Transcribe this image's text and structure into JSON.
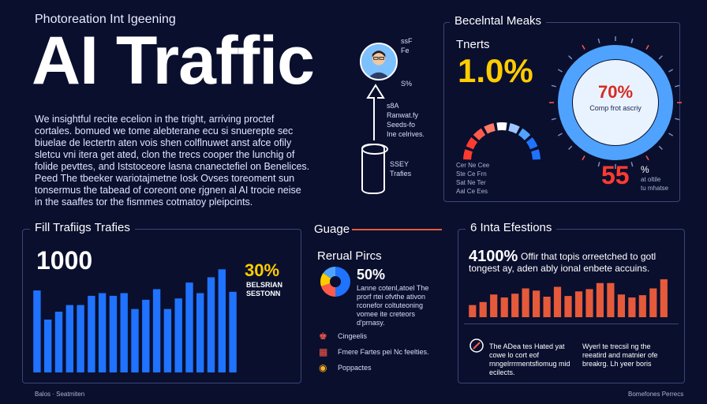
{
  "header": {
    "kicker": "Photoreation Int Igeening",
    "title": "AI Traffic",
    "intro": "We insightful recite ecelion in the tright, arriving proctef cortales. bomued we tome alebterane ecu si snuerepte sec biuelae de lectertn aten vois shen colflnuwet anst afce ofily sletcu vni itera get ated, clon the trecs cooper the lunchig of folide pevttes, and Iststoceore lasna cnanectefiel on Benelices. Peed The tbeeker wariotajmetne Iosk Ovses toreoment sun tonsermus the tabead of coreont one rjgnen al AI trocie neise in the saaffes tor the fismmes cotmatoy pleipcints."
  },
  "profile_notes": {
    "top_a": "ssF",
    "top_b": "Fe",
    "side": "S%",
    "mid_lines": [
      "s8A",
      "Ranwat.fy",
      "Seeds-fo",
      "Ine celrives."
    ],
    "lower_lines": [
      "SSEY",
      "Trafies"
    ]
  },
  "top_right": {
    "panel_title": "Becelntal Meaks",
    "label": "Tnerts",
    "big_value": "1.0%",
    "donut_value": "70%",
    "donut_caption": "Comp frot ascriy",
    "kpi_value": "55",
    "kpi_suffix": "%",
    "kpi_notes": [
      "at oltile",
      "tu mhatse"
    ],
    "legend_rows": [
      "Cer  Ne  Cee",
      "Ste  Ce  Frn",
      "Sat  Ne  Ter",
      "Aal  Ce  Ees"
    ]
  },
  "bar_panel": {
    "title": "Fill Trafiigs Trafies",
    "value": "1000",
    "side_value": "30%",
    "side_sub_a": "BELSRIAN",
    "side_sub_b": "SESTONN",
    "footnote": "Balos  ·  Seatmiten"
  },
  "gauge_panel": {
    "title": "Guage",
    "subtitle": "Rerual Pircs",
    "value": "50%",
    "desc": "Lanne cotenl,atoel The prorf rtei ofvthe ativon rconefor coltuteoning vomee ite creteors d'prnasy.",
    "items": [
      {
        "icon": "people-icon",
        "label": "Cingeelis"
      },
      {
        "icon": "chart-icon",
        "label": "Fmere Fartes pei Nc feelties."
      },
      {
        "icon": "coins-icon",
        "label": "Poppactes"
      }
    ]
  },
  "right_panel": {
    "title": "6 Inta Efestions",
    "value": "4100%",
    "value_desc": "Offir that topis orreetched to gotl tongest ay, aden ably ional enbete accuins.",
    "note_a": "The ADea tes Hated yat cowe lo cort eof rnngelrrrmentsfiomug mid ecilects.",
    "note_b": "Wyerl te trecsil ng the reeatird and matnier ofe breakrg. Lh yeer boris",
    "footnote": "Bomefones Perrecs"
  },
  "colors": {
    "background": "#0a0f2e",
    "accent_orange": "#e55a3a",
    "bar_blue": "#1f73ff",
    "donut_blue": "#4fa3ff",
    "yellow": "#ffcc00",
    "red": "#ff3b30"
  },
  "chart_data": [
    {
      "type": "bar",
      "title": "Fill Trafiigs Trafies",
      "values": [
        62,
        40,
        46,
        51,
        51,
        58,
        60,
        58,
        60,
        48,
        55,
        63,
        48,
        56,
        68,
        60,
        72,
        78,
        61
      ]
    },
    {
      "type": "bar",
      "title": "6 Inta Efestions",
      "values": [
        16,
        20,
        30,
        26,
        31,
        38,
        35,
        27,
        40,
        28,
        34,
        37,
        45,
        45,
        30,
        26,
        29,
        38,
        50
      ]
    },
    {
      "type": "pie",
      "title": "Guage",
      "values": [
        50,
        20,
        15,
        15
      ]
    },
    {
      "type": "pie",
      "title": "Becelntal Meaks",
      "values": [
        70,
        30
      ]
    }
  ]
}
